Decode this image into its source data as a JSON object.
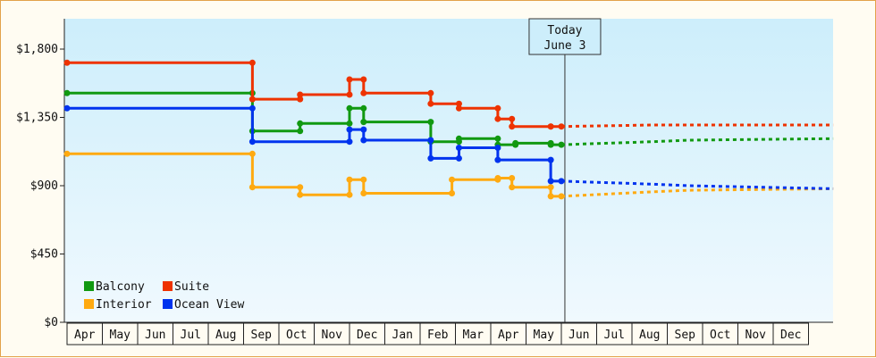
{
  "chart_data": {
    "type": "line",
    "step": true,
    "title": "",
    "xlabel": "",
    "ylabel": "",
    "ylim": [
      0,
      2000
    ],
    "y_ticks": [
      {
        "value": 0,
        "label": "$0"
      },
      {
        "value": 450,
        "label": "$450"
      },
      {
        "value": 900,
        "label": "$900"
      },
      {
        "value": 1350,
        "label": "$1,350"
      },
      {
        "value": 1800,
        "label": "$1,800"
      }
    ],
    "xlim": [
      0,
      21.7
    ],
    "months": [
      "Apr",
      "May",
      "Jun",
      "Jul",
      "Aug",
      "Sep",
      "Oct",
      "Nov",
      "Dec",
      "Jan",
      "Feb",
      "Mar",
      "Apr",
      "May",
      "Jun",
      "Jul",
      "Aug",
      "Sep",
      "Oct",
      "Nov",
      "Dec"
    ],
    "today": {
      "x": 14.1,
      "label_line1": "Today",
      "label_line2": "June 3"
    },
    "legend": {
      "position": "bottom-left",
      "columns": 2
    },
    "grid": false,
    "background_gradient": [
      "#cdeefb",
      "#f0f9fe"
    ],
    "series": [
      {
        "name": "Balcony",
        "color": "#119911",
        "points": [
          [
            0,
            1510
          ],
          [
            5.25,
            1510
          ],
          [
            5.25,
            1260
          ],
          [
            6.6,
            1260
          ],
          [
            6.6,
            1310
          ],
          [
            8.0,
            1310
          ],
          [
            8.0,
            1410
          ],
          [
            8.4,
            1410
          ],
          [
            8.4,
            1320
          ],
          [
            10.3,
            1320
          ],
          [
            10.3,
            1190
          ],
          [
            11.1,
            1190
          ],
          [
            11.1,
            1210
          ],
          [
            12.2,
            1210
          ],
          [
            12.2,
            1170
          ],
          [
            12.7,
            1170
          ],
          [
            12.7,
            1180
          ],
          [
            13.7,
            1180
          ],
          [
            13.7,
            1170
          ],
          [
            14.0,
            1170
          ]
        ],
        "projection": [
          [
            14.0,
            1170
          ],
          [
            16.6,
            1190
          ],
          [
            17.6,
            1200
          ],
          [
            21.7,
            1210
          ]
        ]
      },
      {
        "name": "Suite",
        "color": "#ee3300",
        "points": [
          [
            0,
            1710
          ],
          [
            5.25,
            1710
          ],
          [
            5.25,
            1470
          ],
          [
            6.6,
            1470
          ],
          [
            6.6,
            1500
          ],
          [
            8.0,
            1500
          ],
          [
            8.0,
            1600
          ],
          [
            8.4,
            1600
          ],
          [
            8.4,
            1510
          ],
          [
            10.3,
            1510
          ],
          [
            10.3,
            1440
          ],
          [
            11.1,
            1440
          ],
          [
            11.1,
            1410
          ],
          [
            12.2,
            1410
          ],
          [
            12.2,
            1340
          ],
          [
            12.6,
            1340
          ],
          [
            12.6,
            1290
          ],
          [
            13.7,
            1290
          ],
          [
            13.7,
            1290
          ],
          [
            14.0,
            1290
          ]
        ],
        "projection": [
          [
            14.0,
            1290
          ],
          [
            16.6,
            1300
          ],
          [
            17.6,
            1300
          ],
          [
            21.7,
            1300
          ]
        ]
      },
      {
        "name": "Interior",
        "color": "#ffaa11",
        "points": [
          [
            0,
            1110
          ],
          [
            5.25,
            1110
          ],
          [
            5.25,
            890
          ],
          [
            6.6,
            890
          ],
          [
            6.6,
            840
          ],
          [
            8.0,
            840
          ],
          [
            8.0,
            940
          ],
          [
            8.4,
            940
          ],
          [
            8.4,
            850
          ],
          [
            10.9,
            850
          ],
          [
            10.9,
            940
          ],
          [
            12.2,
            940
          ],
          [
            12.2,
            950
          ],
          [
            12.6,
            950
          ],
          [
            12.6,
            890
          ],
          [
            13.7,
            890
          ],
          [
            13.7,
            830
          ],
          [
            14.0,
            830
          ]
        ],
        "projection": [
          [
            14.0,
            830
          ],
          [
            16.6,
            860
          ],
          [
            17.6,
            870
          ],
          [
            21.7,
            880
          ]
        ]
      },
      {
        "name": "Ocean View",
        "color": "#0033ee",
        "points": [
          [
            0,
            1410
          ],
          [
            5.25,
            1410
          ],
          [
            5.25,
            1190
          ],
          [
            8.0,
            1190
          ],
          [
            8.0,
            1270
          ],
          [
            8.4,
            1270
          ],
          [
            8.4,
            1200
          ],
          [
            10.3,
            1200
          ],
          [
            10.3,
            1080
          ],
          [
            11.1,
            1080
          ],
          [
            11.1,
            1150
          ],
          [
            12.2,
            1150
          ],
          [
            12.2,
            1070
          ],
          [
            13.7,
            1070
          ],
          [
            13.7,
            930
          ],
          [
            14.0,
            930
          ]
        ],
        "projection": [
          [
            14.0,
            930
          ],
          [
            16.6,
            910
          ],
          [
            17.6,
            900
          ],
          [
            21.7,
            880
          ]
        ]
      }
    ]
  }
}
